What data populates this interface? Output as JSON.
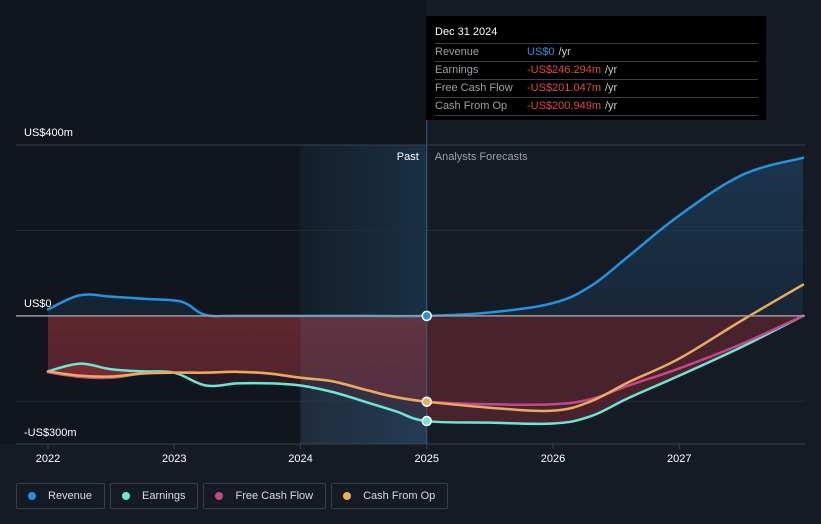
{
  "tooltip": {
    "date": "Dec 31 2024",
    "rows": [
      {
        "label": "Revenue",
        "value": "US$0",
        "unit": "/yr",
        "color": "#2394df"
      },
      {
        "label": "Earnings",
        "value": "-US$246.294m",
        "unit": "/yr",
        "color": "#e64545"
      },
      {
        "label": "Free Cash Flow",
        "value": "-US$201.047m",
        "unit": "/yr",
        "color": "#e64545"
      },
      {
        "label": "Cash From Op",
        "value": "-US$200.949m",
        "unit": "/yr",
        "color": "#e64545"
      }
    ]
  },
  "legend": [
    {
      "label": "Revenue",
      "color": "#2394df"
    },
    {
      "label": "Earnings",
      "color": "#6ee6d4"
    },
    {
      "label": "Free Cash Flow",
      "color": "#c4488a"
    },
    {
      "label": "Cash From Op",
      "color": "#e8ab5f"
    }
  ],
  "chart_data": {
    "type": "line",
    "title": "",
    "xlabel": "",
    "ylabel": "",
    "y_unit": "US$ millions",
    "ylim": [
      -300,
      400
    ],
    "y_tick_labels": [
      {
        "value": 400,
        "label": "US$400m"
      },
      {
        "value": 0,
        "label": "US$0"
      },
      {
        "value": -300,
        "label": "-US$300m"
      }
    ],
    "gridlines_at": [
      400,
      200,
      0,
      -200
    ],
    "xlim": [
      2021.99,
      2027.98
    ],
    "x_ticks": [
      2022,
      2023,
      2024,
      2025,
      2026,
      2027
    ],
    "x_tick_labels": [
      "2022",
      "2023",
      "2024",
      "2025",
      "2026",
      "2027"
    ],
    "past_label": "Past",
    "forecast_label": "Analysts Forecasts",
    "divider_x": 2025.0,
    "highlight_start_x": 2024.0,
    "series": [
      {
        "name": "Revenue",
        "color": "#2394df",
        "points": [
          [
            2022.0,
            15
          ],
          [
            2022.25,
            48
          ],
          [
            2022.5,
            45
          ],
          [
            2022.75,
            40
          ],
          [
            2023.0,
            36
          ],
          [
            2023.1,
            28
          ],
          [
            2023.25,
            2
          ],
          [
            2023.5,
            0
          ],
          [
            2024.0,
            0
          ],
          [
            2024.5,
            0
          ],
          [
            2025.0,
            0
          ],
          [
            2025.5,
            8
          ],
          [
            2026.0,
            30
          ],
          [
            2026.3,
            70
          ],
          [
            2026.6,
            140
          ],
          [
            2027.0,
            235
          ],
          [
            2027.5,
            330
          ],
          [
            2027.98,
            370
          ]
        ]
      },
      {
        "name": "Earnings",
        "color": "#6ee6d4",
        "points": [
          [
            2022.0,
            -130
          ],
          [
            2022.25,
            -112
          ],
          [
            2022.5,
            -125
          ],
          [
            2022.75,
            -130
          ],
          [
            2023.0,
            -133
          ],
          [
            2023.25,
            -163
          ],
          [
            2023.5,
            -158
          ],
          [
            2023.75,
            -158
          ],
          [
            2024.0,
            -163
          ],
          [
            2024.25,
            -178
          ],
          [
            2024.5,
            -200
          ],
          [
            2024.75,
            -223
          ],
          [
            2025.0,
            -246.294
          ],
          [
            2025.5,
            -250
          ],
          [
            2026.0,
            -252
          ],
          [
            2026.3,
            -235
          ],
          [
            2026.6,
            -192
          ],
          [
            2027.0,
            -140
          ],
          [
            2027.5,
            -72
          ],
          [
            2027.98,
            0
          ]
        ]
      },
      {
        "name": "Free Cash Flow",
        "color": "#c4488a",
        "points": [
          [
            2022.0,
            -132
          ],
          [
            2022.25,
            -143
          ],
          [
            2022.5,
            -145
          ],
          [
            2022.75,
            -135
          ],
          [
            2023.0,
            -133
          ],
          [
            2023.25,
            -133
          ],
          [
            2023.5,
            -131
          ],
          [
            2023.75,
            -135
          ],
          [
            2024.0,
            -145
          ],
          [
            2024.25,
            -153
          ],
          [
            2024.5,
            -172
          ],
          [
            2024.75,
            -190
          ],
          [
            2025.0,
            -201.047
          ],
          [
            2025.5,
            -207
          ],
          [
            2026.0,
            -207
          ],
          [
            2026.3,
            -195
          ],
          [
            2026.6,
            -163
          ],
          [
            2027.0,
            -123
          ],
          [
            2027.5,
            -65
          ],
          [
            2027.98,
            0
          ]
        ]
      },
      {
        "name": "Cash From Op",
        "color": "#e8ab5f",
        "points": [
          [
            2022.0,
            -130
          ],
          [
            2022.25,
            -140
          ],
          [
            2022.5,
            -142
          ],
          [
            2022.75,
            -135
          ],
          [
            2023.0,
            -133
          ],
          [
            2023.25,
            -133
          ],
          [
            2023.5,
            -131
          ],
          [
            2023.75,
            -135
          ],
          [
            2024.0,
            -145
          ],
          [
            2024.25,
            -153
          ],
          [
            2024.5,
            -172
          ],
          [
            2024.75,
            -190
          ],
          [
            2025.0,
            -200.949
          ],
          [
            2025.5,
            -215
          ],
          [
            2026.0,
            -222
          ],
          [
            2026.3,
            -200
          ],
          [
            2026.6,
            -155
          ],
          [
            2027.0,
            -100
          ],
          [
            2027.5,
            -10
          ],
          [
            2027.98,
            73
          ]
        ]
      }
    ],
    "markers": [
      {
        "series": "Revenue",
        "x": 2025.0,
        "y": 0
      },
      {
        "series": "Cash From Op",
        "x": 2025.0,
        "y": -200.949
      },
      {
        "series": "Earnings",
        "x": 2025.0,
        "y": -246.294
      }
    ]
  }
}
